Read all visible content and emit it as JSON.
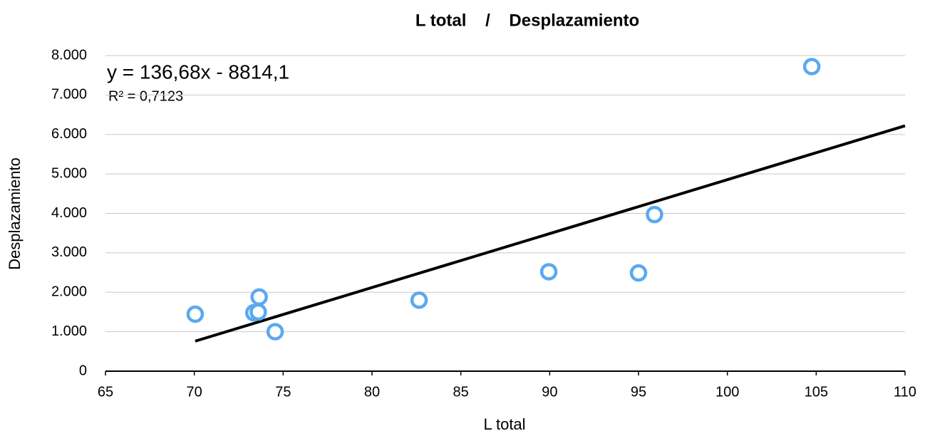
{
  "chart_data": {
    "type": "scatter",
    "title": "L total    /    Desplazamiento",
    "x_label": "L total",
    "y_label": "Desplazamiento",
    "x": [
      70.05,
      73.65,
      73.35,
      73.6,
      74.55,
      82.65,
      89.95,
      95,
      95.9,
      104.75
    ],
    "series": [
      {
        "name": "Desplazamiento",
        "color": "#5aa9f0",
        "values": [
          1445,
          1880,
          1480,
          1500,
          1000,
          1800,
          2520,
          2490,
          3970,
          7720
        ]
      }
    ],
    "trendline": {
      "slope": 136.68,
      "intercept": -8814.1,
      "color": "#000000",
      "equation": "y = 136,68x - 8814,1",
      "r2_label": "R² = 0,7123"
    },
    "xlim": [
      65,
      110
    ],
    "xticks": [
      65,
      70,
      75,
      80,
      85,
      90,
      95,
      100,
      105,
      110
    ],
    "ylim": [
      0,
      8000
    ],
    "yticks": [
      0,
      {
        "value": 1000,
        "label": "1.000"
      },
      {
        "value": 2000,
        "label": "2.000"
      },
      {
        "value": 3000,
        "label": "3.000"
      },
      {
        "value": 4000,
        "label": "4.000"
      },
      {
        "value": 5000,
        "label": "5.000"
      },
      {
        "value": 6000,
        "label": "6.000"
      },
      {
        "value": 7000,
        "label": "7.000"
      },
      {
        "value": 8000,
        "label": "8.000"
      }
    ],
    "grid": true
  }
}
